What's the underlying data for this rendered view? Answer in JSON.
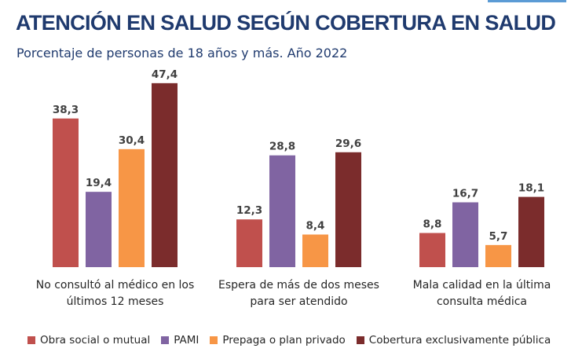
{
  "header": {
    "title": "ATENCIÓN EN SALUD SEGÚN COBERTURA EN SALUD",
    "subtitle": "Porcentaje de personas de 18 años y más. Año 2022"
  },
  "chart_data": {
    "type": "bar",
    "title": "ATENCIÓN EN SALUD SEGÚN COBERTURA EN SALUD",
    "subtitle": "Porcentaje de personas de 18 años y más. Año 2022",
    "categories": [
      [
        "No consultó al médico en los",
        "últimos 12 meses"
      ],
      [
        "Espera de más de dos meses",
        "para ser atendido"
      ],
      [
        "Mala calidad en la última",
        "consulta médica"
      ]
    ],
    "series": [
      {
        "name": "Obra social o mutual",
        "color": "#c0504d",
        "values": [
          38.3,
          12.3,
          8.8
        ],
        "labels": [
          "38,3",
          "12,3",
          "8,8"
        ]
      },
      {
        "name": "PAMI",
        "color": "#8064a2",
        "values": [
          19.4,
          28.8,
          16.7
        ],
        "labels": [
          "19,4",
          "28,8",
          "16,7"
        ]
      },
      {
        "name": "Prepaga o plan privado",
        "color": "#f79646",
        "values": [
          30.4,
          8.4,
          5.7
        ],
        "labels": [
          "30,4",
          "8,4",
          "5,7"
        ]
      },
      {
        "name": "Cobertura exclusivamente pública",
        "color": "#7b2c2c",
        "values": [
          47.4,
          29.6,
          18.1
        ],
        "labels": [
          "47,4",
          "29,6",
          "18,1"
        ]
      }
    ],
    "xlabel": "",
    "ylabel": "",
    "ylim": [
      0,
      50
    ],
    "grid": false,
    "legend_position": "bottom"
  }
}
